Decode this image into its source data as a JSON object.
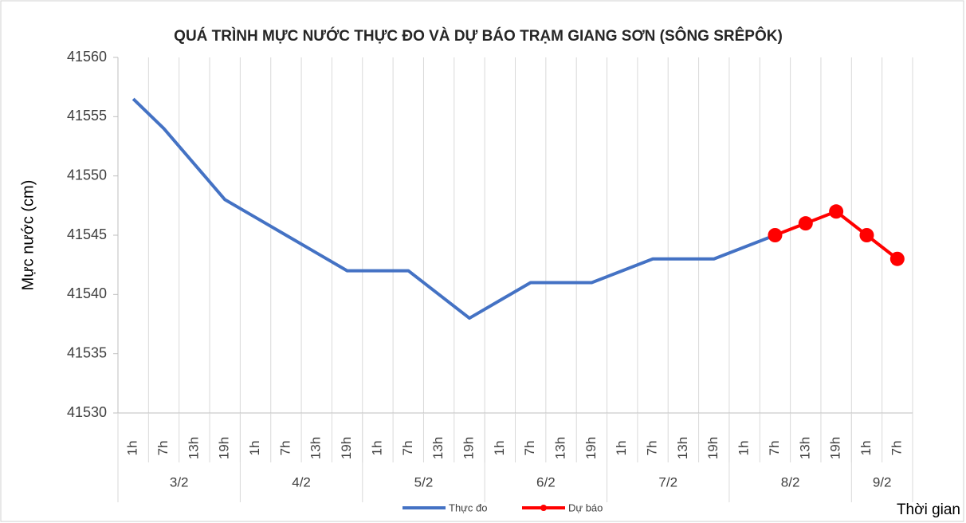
{
  "chart_data": {
    "type": "line",
    "title": "QUÁ TRÌNH MỰC NƯỚC THỰC ĐO VÀ DỰ BÁO TRẠM GIANG SƠN (SÔNG SRÊPÔK)",
    "y_label": "Mực nước (cm)",
    "x_label": "Thời gian",
    "categories": [
      "1h",
      "7h",
      "13h",
      "19h",
      "1h",
      "7h",
      "13h",
      "19h",
      "1h",
      "7h",
      "13h",
      "19h",
      "1h",
      "7h",
      "13h",
      "19h",
      "1h",
      "7h",
      "13h",
      "19h",
      "1h",
      "7h",
      "13h",
      "19h",
      "1h",
      "7h"
    ],
    "groups": [
      {
        "name": "3/2",
        "count": 4
      },
      {
        "name": "4/2",
        "count": 4
      },
      {
        "name": "5/2",
        "count": 4
      },
      {
        "name": "6/2",
        "count": 4
      },
      {
        "name": "7/2",
        "count": 4
      },
      {
        "name": "8/2",
        "count": 4
      },
      {
        "name": "9/2",
        "count": 2
      }
    ],
    "series": [
      {
        "name": "Thực đo",
        "color": "#4472c4",
        "markers": false,
        "values": [
          41556.5,
          41554,
          41551,
          41548,
          41546.5,
          41545,
          41543.5,
          41542,
          41542,
          41542,
          41540,
          41538,
          41539.5,
          41541,
          41541,
          41541,
          41542,
          41543,
          41543,
          41543,
          41544,
          41545,
          null,
          null,
          null,
          null
        ]
      },
      {
        "name": "Dự báo",
        "color": "#ff0000",
        "markers": true,
        "values": [
          null,
          null,
          null,
          null,
          null,
          null,
          null,
          null,
          null,
          null,
          null,
          null,
          null,
          null,
          null,
          null,
          null,
          null,
          null,
          null,
          null,
          41545,
          41546,
          41547,
          41545,
          41543
        ]
      }
    ],
    "ylim": [
      41530,
      41560
    ],
    "yticks": [
      41530,
      41535,
      41540,
      41545,
      41550,
      41555,
      41560
    ],
    "grid": true,
    "legend": "bottom"
  }
}
